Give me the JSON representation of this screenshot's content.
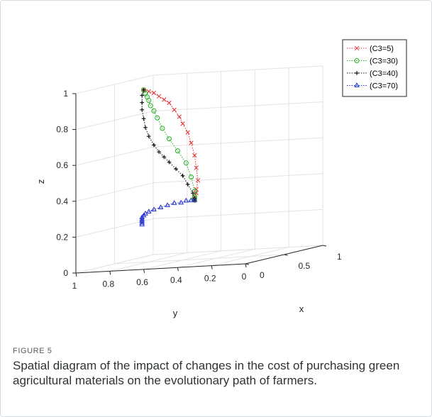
{
  "figure": {
    "label": "FIGURE 5",
    "caption": "Spatial diagram of the impact of changes in the cost of purchasing green agricultural materials on the evolutionary path of farmers."
  },
  "chart_data": {
    "type": "line3d",
    "title": "",
    "xlabel": "x",
    "ylabel": "y",
    "zlabel": "z",
    "xlim": [
      0,
      1
    ],
    "ylim": [
      0,
      1
    ],
    "zlim": [
      0,
      1
    ],
    "x_ticks": [
      "0",
      "0.5",
      "1"
    ],
    "y_ticks": [
      "1",
      "0.8",
      "0.6",
      "0.4",
      "0.2",
      "0"
    ],
    "z_ticks": [
      "0",
      "0.2",
      "0.4",
      "0.6",
      "0.8",
      "1"
    ],
    "grid": true,
    "legend_position": "top-right",
    "series": [
      {
        "name": "(C3=5)",
        "color": "#e03030",
        "marker": "x",
        "points": [
          [
            0.0,
            0.6,
            1.0
          ],
          [
            0.0,
            0.57,
            0.99
          ],
          [
            0.0,
            0.54,
            0.98
          ],
          [
            0.0,
            0.51,
            0.96
          ],
          [
            0.0,
            0.48,
            0.94
          ],
          [
            0.0,
            0.45,
            0.92
          ],
          [
            0.0,
            0.42,
            0.88
          ],
          [
            0.0,
            0.39,
            0.84
          ],
          [
            0.0,
            0.37,
            0.8
          ],
          [
            0.0,
            0.34,
            0.75
          ],
          [
            0.0,
            0.32,
            0.69
          ],
          [
            0.0,
            0.3,
            0.62
          ],
          [
            0.0,
            0.29,
            0.55
          ],
          [
            0.0,
            0.28,
            0.48
          ],
          [
            0.0,
            0.29,
            0.43
          ],
          [
            0.0,
            0.29,
            0.41
          ],
          [
            0.0,
            0.3,
            0.39
          ],
          [
            0.0,
            0.3,
            0.38
          ],
          [
            0.0,
            0.3,
            0.37
          ]
        ]
      },
      {
        "name": "(C3=30)",
        "color": "#22b022",
        "marker": "o",
        "points": [
          [
            0.0,
            0.6,
            1.0
          ],
          [
            0.0,
            0.59,
            0.98
          ],
          [
            0.0,
            0.58,
            0.96
          ],
          [
            0.0,
            0.57,
            0.94
          ],
          [
            0.0,
            0.56,
            0.91
          ],
          [
            0.0,
            0.54,
            0.88
          ],
          [
            0.0,
            0.52,
            0.84
          ],
          [
            0.0,
            0.49,
            0.78
          ],
          [
            0.0,
            0.45,
            0.72
          ],
          [
            0.0,
            0.4,
            0.65
          ],
          [
            0.0,
            0.35,
            0.58
          ],
          [
            0.0,
            0.32,
            0.5
          ],
          [
            0.0,
            0.3,
            0.42
          ],
          [
            0.0,
            0.3,
            0.39
          ],
          [
            0.0,
            0.3,
            0.38
          ],
          [
            0.0,
            0.3,
            0.37
          ]
        ]
      },
      {
        "name": "(C3=40)",
        "color": "#111111",
        "marker": "+",
        "points": [
          [
            0.0,
            0.6,
            1.0
          ],
          [
            0.0,
            0.61,
            0.97
          ],
          [
            0.0,
            0.61,
            0.93
          ],
          [
            0.0,
            0.61,
            0.89
          ],
          [
            0.0,
            0.6,
            0.84
          ],
          [
            0.0,
            0.59,
            0.79
          ],
          [
            0.0,
            0.57,
            0.74
          ],
          [
            0.0,
            0.54,
            0.69
          ],
          [
            0.0,
            0.51,
            0.65
          ],
          [
            0.0,
            0.48,
            0.62
          ],
          [
            0.0,
            0.45,
            0.59
          ],
          [
            0.0,
            0.41,
            0.55
          ],
          [
            0.0,
            0.37,
            0.51
          ],
          [
            0.0,
            0.34,
            0.46
          ],
          [
            0.0,
            0.31,
            0.41
          ],
          [
            0.0,
            0.3,
            0.38
          ],
          [
            0.0,
            0.3,
            0.37
          ]
        ]
      },
      {
        "name": "(C3=70)",
        "color": "#2030d0",
        "marker": "^",
        "points": [
          [
            0.0,
            0.3,
            0.37
          ],
          [
            0.0,
            0.32,
            0.37
          ],
          [
            0.0,
            0.35,
            0.37
          ],
          [
            0.0,
            0.38,
            0.36
          ],
          [
            0.0,
            0.42,
            0.36
          ],
          [
            0.0,
            0.46,
            0.35
          ],
          [
            0.0,
            0.5,
            0.34
          ],
          [
            0.0,
            0.54,
            0.33
          ],
          [
            0.0,
            0.57,
            0.32
          ],
          [
            0.0,
            0.59,
            0.31
          ],
          [
            0.0,
            0.6,
            0.3
          ],
          [
            0.0,
            0.61,
            0.29
          ],
          [
            0.0,
            0.61,
            0.28
          ],
          [
            0.0,
            0.61,
            0.27
          ],
          [
            0.0,
            0.61,
            0.26
          ],
          [
            0.0,
            0.61,
            0.25
          ]
        ]
      }
    ]
  }
}
